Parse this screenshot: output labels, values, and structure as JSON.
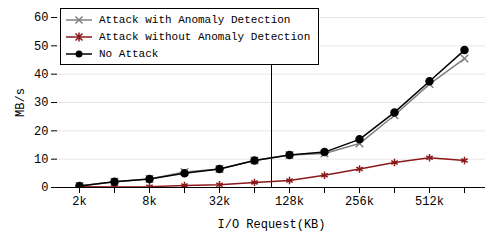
{
  "chart_data": {
    "type": "line",
    "x_label": "I/O Request(KB)",
    "y_label": "MB/s",
    "categories": [
      "2k",
      null,
      "8k",
      null,
      "32k",
      null,
      "128k",
      null,
      "256k",
      null,
      "512k",
      null
    ],
    "series": [
      {
        "name": "Attack with Anomaly Detection",
        "color": "#808080",
        "marker": "x",
        "values": [
          0.5,
          2,
          3,
          5.5,
          6.5,
          9.5,
          11.5,
          12,
          15.5,
          25.5,
          36.5,
          45.5
        ]
      },
      {
        "name": "Attack without Anomaly Detection",
        "color": "#8b1a1a",
        "marker": "asterisk",
        "values": [
          0.3,
          0.2,
          0.3,
          0.7,
          1,
          1.8,
          2.5,
          4.3,
          6.5,
          8.8,
          10.5,
          9.5
        ]
      },
      {
        "name": "No Attack",
        "color": "#000000",
        "marker": "circle",
        "values": [
          0.5,
          2,
          3,
          5,
          6.5,
          9.5,
          11.5,
          12.5,
          17,
          26.5,
          37.5,
          48.5
        ]
      }
    ],
    "ylim": [
      0,
      60
    ],
    "yticks": [
      0,
      10,
      20,
      30,
      40,
      50,
      60
    ],
    "grid": true,
    "legend": "top-left"
  }
}
